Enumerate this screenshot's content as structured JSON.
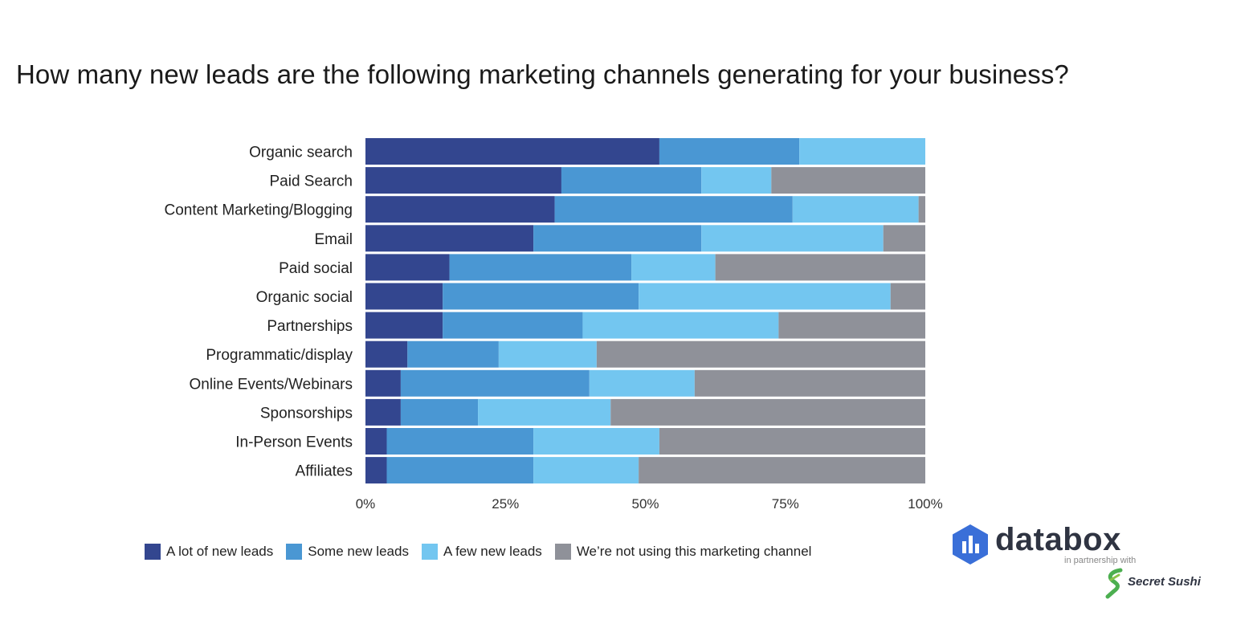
{
  "title": "How many new leads are the following marketing channels generating for your business?",
  "chart_data": {
    "type": "bar",
    "orientation": "horizontal",
    "stacked": true,
    "normalized": true,
    "categories": [
      "Organic search",
      "Paid Search",
      "Content Marketing/Blogging",
      "Email",
      "Paid social",
      "Organic social",
      "Partnerships",
      "Programmatic/display",
      "Online Events/Webinars",
      "Sponsorships",
      "In-Person Events",
      "Affiliates"
    ],
    "series": [
      {
        "name": "A lot of new leads",
        "color": "#33468f",
        "values": [
          52.5,
          35,
          33.8,
          30,
          15,
          13.8,
          13.8,
          7.5,
          6.3,
          6.3,
          3.8,
          3.8
        ]
      },
      {
        "name": "Some new leads",
        "color": "#4a97d3",
        "values": [
          25,
          25,
          42.5,
          30,
          32.5,
          35,
          25,
          16.3,
          33.7,
          13.8,
          26.2,
          26.2
        ]
      },
      {
        "name": "A few new leads",
        "color": "#73c6f0",
        "values": [
          22.5,
          12.5,
          22.5,
          32.5,
          15,
          45,
          35,
          17.5,
          18.8,
          23.7,
          22.5,
          18.8
        ]
      },
      {
        "name": "We’re not using this marketing channel",
        "color": "#8f9199",
        "values": [
          0,
          27.5,
          1.2,
          7.5,
          37.5,
          6.2,
          26.2,
          58.7,
          41.2,
          56.2,
          47.5,
          51.2
        ]
      }
    ],
    "xlim": [
      0,
      100
    ],
    "xticks": [
      "0%",
      "25%",
      "50%",
      "75%",
      "100%"
    ],
    "xlabel": "",
    "ylabel": "",
    "legend": "bottom"
  },
  "branding": {
    "name": "databox",
    "partner_text": "in partnership with",
    "partner_name": "Secret Sushi"
  }
}
